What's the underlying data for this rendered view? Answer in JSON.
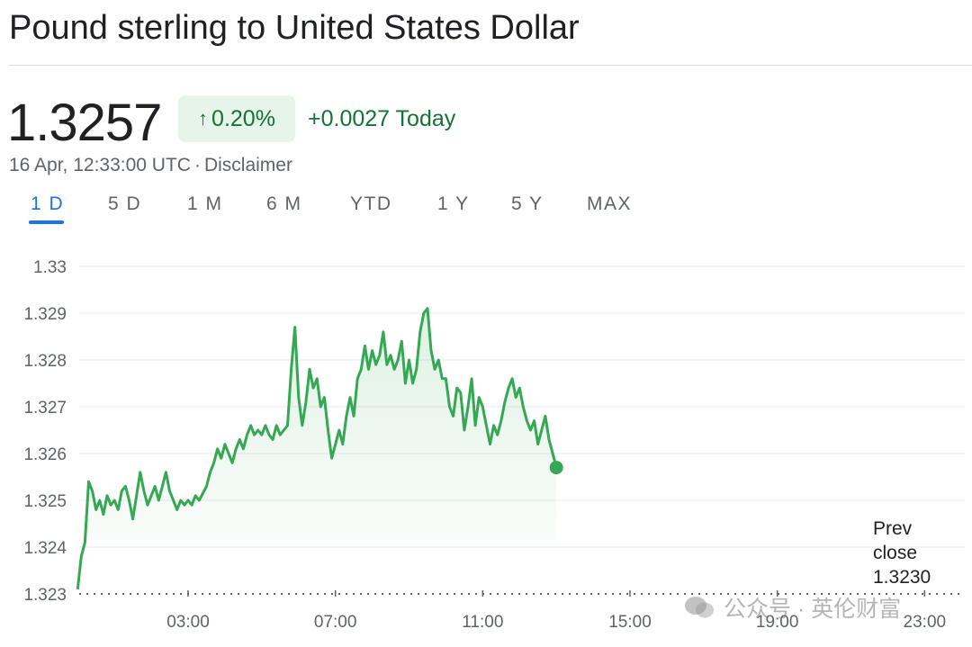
{
  "header": {
    "title": "Pound sterling to United States Dollar"
  },
  "quote": {
    "price": "1.3257",
    "percent_change": "0.20%",
    "abs_change": "+0.0027 Today",
    "timestamp": "16 Apr, 12:33:00 UTC",
    "separator": "·",
    "disclaimer": "Disclaimer"
  },
  "range_tabs": [
    {
      "label": "1 D",
      "active": true
    },
    {
      "label": "5 D",
      "active": false
    },
    {
      "label": "1 M",
      "active": false
    },
    {
      "label": "6 M",
      "active": false
    },
    {
      "label": "YTD",
      "active": false
    },
    {
      "label": "1 Y",
      "active": false
    },
    {
      "label": "5 Y",
      "active": false
    },
    {
      "label": "MAX",
      "active": false
    }
  ],
  "colors": {
    "up": "#34a853",
    "up_text": "#137333",
    "badge_bg": "#e6f4ea",
    "active_tab": "#1a73e8",
    "grid": "#e8eaed"
  },
  "watermark": "公众号 · 英伦财富",
  "chart_data": {
    "type": "line",
    "title": "",
    "xlabel": "",
    "ylabel": "",
    "x_domain_hours": [
      0,
      24
    ],
    "x_ticks": [
      {
        "hour": 3,
        "label": "03:00"
      },
      {
        "hour": 7,
        "label": "07:00"
      },
      {
        "hour": 11,
        "label": "11:00"
      },
      {
        "hour": 15,
        "label": "15:00"
      },
      {
        "hour": 19,
        "label": "19:00"
      },
      {
        "hour": 23,
        "label": "23:00"
      }
    ],
    "ylim": [
      1.323,
      1.33
    ],
    "y_ticks": [
      1.323,
      1.324,
      1.325,
      1.326,
      1.327,
      1.328,
      1.329,
      1.33
    ],
    "grid": true,
    "previous_close": {
      "label_lines": [
        "Prev",
        "close",
        "1.3230"
      ],
      "value": 1.323
    },
    "series": [
      {
        "points": [
          [
            0.0,
            1.3231
          ],
          [
            0.1,
            1.3238
          ],
          [
            0.2,
            1.3241
          ],
          [
            0.3,
            1.3254
          ],
          [
            0.4,
            1.3252
          ],
          [
            0.5,
            1.3248
          ],
          [
            0.6,
            1.325
          ],
          [
            0.7,
            1.3247
          ],
          [
            0.8,
            1.3251
          ],
          [
            0.9,
            1.3249
          ],
          [
            1.0,
            1.325
          ],
          [
            1.1,
            1.3248
          ],
          [
            1.2,
            1.3252
          ],
          [
            1.3,
            1.3253
          ],
          [
            1.4,
            1.325
          ],
          [
            1.5,
            1.3246
          ],
          [
            1.6,
            1.3251
          ],
          [
            1.7,
            1.3256
          ],
          [
            1.8,
            1.3252
          ],
          [
            1.9,
            1.3249
          ],
          [
            2.0,
            1.3251
          ],
          [
            2.1,
            1.3253
          ],
          [
            2.2,
            1.325
          ],
          [
            2.3,
            1.3253
          ],
          [
            2.4,
            1.3256
          ],
          [
            2.5,
            1.3252
          ],
          [
            2.6,
            1.325
          ],
          [
            2.7,
            1.3248
          ],
          [
            2.8,
            1.325
          ],
          [
            2.9,
            1.3249
          ],
          [
            3.0,
            1.325
          ],
          [
            3.1,
            1.3249
          ],
          [
            3.2,
            1.3251
          ],
          [
            3.3,
            1.325
          ],
          [
            3.5,
            1.3253
          ],
          [
            3.6,
            1.3256
          ],
          [
            3.7,
            1.3258
          ],
          [
            3.8,
            1.3261
          ],
          [
            3.9,
            1.3259
          ],
          [
            4.0,
            1.3262
          ],
          [
            4.1,
            1.326
          ],
          [
            4.2,
            1.3258
          ],
          [
            4.3,
            1.3261
          ],
          [
            4.4,
            1.3263
          ],
          [
            4.5,
            1.3261
          ],
          [
            4.6,
            1.3264
          ],
          [
            4.7,
            1.3266
          ],
          [
            4.8,
            1.3264
          ],
          [
            4.9,
            1.3265
          ],
          [
            5.0,
            1.3264
          ],
          [
            5.1,
            1.3266
          ],
          [
            5.2,
            1.3264
          ],
          [
            5.3,
            1.3263
          ],
          [
            5.4,
            1.3266
          ],
          [
            5.5,
            1.3264
          ],
          [
            5.6,
            1.3265
          ],
          [
            5.7,
            1.3266
          ],
          [
            5.8,
            1.3278
          ],
          [
            5.9,
            1.3287
          ],
          [
            6.0,
            1.3272
          ],
          [
            6.1,
            1.3266
          ],
          [
            6.2,
            1.3271
          ],
          [
            6.3,
            1.3278
          ],
          [
            6.4,
            1.3274
          ],
          [
            6.5,
            1.3276
          ],
          [
            6.6,
            1.327
          ],
          [
            6.7,
            1.3272
          ],
          [
            6.8,
            1.3265
          ],
          [
            6.9,
            1.3259
          ],
          [
            7.0,
            1.3262
          ],
          [
            7.1,
            1.3265
          ],
          [
            7.2,
            1.3262
          ],
          [
            7.3,
            1.3268
          ],
          [
            7.4,
            1.3272
          ],
          [
            7.5,
            1.3268
          ],
          [
            7.6,
            1.3276
          ],
          [
            7.7,
            1.3278
          ],
          [
            7.8,
            1.3283
          ],
          [
            7.9,
            1.3278
          ],
          [
            8.0,
            1.3282
          ],
          [
            8.1,
            1.3279
          ],
          [
            8.2,
            1.3281
          ],
          [
            8.3,
            1.3286
          ],
          [
            8.4,
            1.3279
          ],
          [
            8.5,
            1.3281
          ],
          [
            8.6,
            1.3278
          ],
          [
            8.7,
            1.328
          ],
          [
            8.8,
            1.3284
          ],
          [
            8.9,
            1.3275
          ],
          [
            9.0,
            1.328
          ],
          [
            9.1,
            1.3275
          ],
          [
            9.2,
            1.3278
          ],
          [
            9.3,
            1.3286
          ],
          [
            9.4,
            1.329
          ],
          [
            9.5,
            1.3291
          ],
          [
            9.6,
            1.3282
          ],
          [
            9.7,
            1.3278
          ],
          [
            9.8,
            1.328
          ],
          [
            9.9,
            1.3276
          ],
          [
            10.0,
            1.3276
          ],
          [
            10.1,
            1.327
          ],
          [
            10.2,
            1.3268
          ],
          [
            10.3,
            1.3274
          ],
          [
            10.4,
            1.3273
          ],
          [
            10.5,
            1.3265
          ],
          [
            10.6,
            1.327
          ],
          [
            10.7,
            1.3276
          ],
          [
            10.8,
            1.3266
          ],
          [
            10.9,
            1.3272
          ],
          [
            11.0,
            1.327
          ],
          [
            11.1,
            1.3266
          ],
          [
            11.2,
            1.3262
          ],
          [
            11.3,
            1.3266
          ],
          [
            11.4,
            1.3264
          ],
          [
            11.5,
            1.3267
          ],
          [
            11.6,
            1.3271
          ],
          [
            11.7,
            1.3274
          ],
          [
            11.8,
            1.3276
          ],
          [
            11.9,
            1.3272
          ],
          [
            12.0,
            1.3274
          ],
          [
            12.1,
            1.327
          ],
          [
            12.2,
            1.3267
          ],
          [
            12.3,
            1.3265
          ],
          [
            12.4,
            1.3267
          ],
          [
            12.5,
            1.3262
          ],
          [
            12.6,
            1.3265
          ],
          [
            12.7,
            1.3268
          ],
          [
            12.8,
            1.3263
          ],
          [
            12.9,
            1.326
          ],
          [
            13.0,
            1.3257
          ]
        ]
      }
    ]
  }
}
